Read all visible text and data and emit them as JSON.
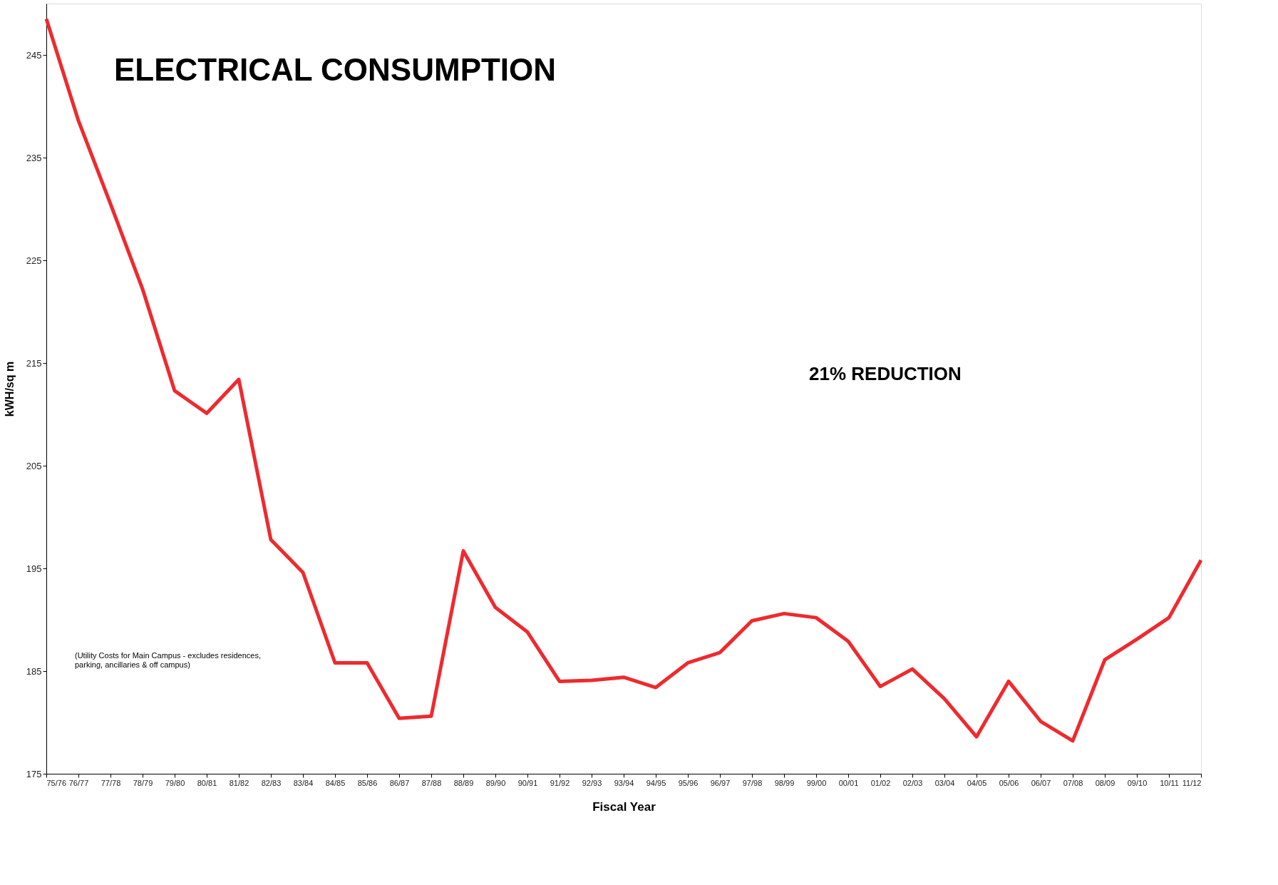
{
  "chart_data": {
    "type": "line",
    "title": "ELECTRICAL CONSUMPTION",
    "xlabel": "Fiscal Year",
    "ylabel": "kWH/sq m",
    "categories": [
      "75/76",
      "76/77",
      "77/78",
      "78/79",
      "79/80",
      "80/81",
      "81/82",
      "82/83",
      "83/84",
      "84/85",
      "85/86",
      "86/87",
      "87/88",
      "88/89",
      "89/90",
      "90/91",
      "91/92",
      "92/93",
      "93/94",
      "94/95",
      "95/96",
      "96/97",
      "97/98",
      "98/99",
      "99/00",
      "00/01",
      "01/02",
      "02/03",
      "03/04",
      "04/05",
      "05/06",
      "06/07",
      "07/08",
      "08/09",
      "09/10",
      "10/11",
      "11/12"
    ],
    "series": [
      {
        "color": "#ee2a2e",
        "values": [
          248.5,
          238.6,
          230.5,
          222.2,
          212.3,
          210.1,
          213.4,
          197.8,
          194.6,
          185.8,
          185.8,
          180.4,
          180.6,
          196.7,
          191.2,
          188.8,
          184.0,
          184.1,
          184.4,
          183.4,
          185.8,
          186.8,
          189.9,
          190.6,
          190.2,
          187.9,
          183.5,
          185.2,
          182.3,
          178.6,
          184.0,
          180.1,
          178.2,
          186.1,
          188.1,
          190.2,
          195.8
        ]
      }
    ],
    "ylim": [
      175,
      250
    ],
    "yticks": [
      175,
      185,
      195,
      205,
      215,
      225,
      235,
      245
    ],
    "grid": false,
    "marker": "none",
    "line_style": "solid",
    "annotations": [
      "21% REDUCTION",
      "(Utility Costs for Main Campus - excludes residences,\nparking, ancillaries & off campus)"
    ]
  }
}
